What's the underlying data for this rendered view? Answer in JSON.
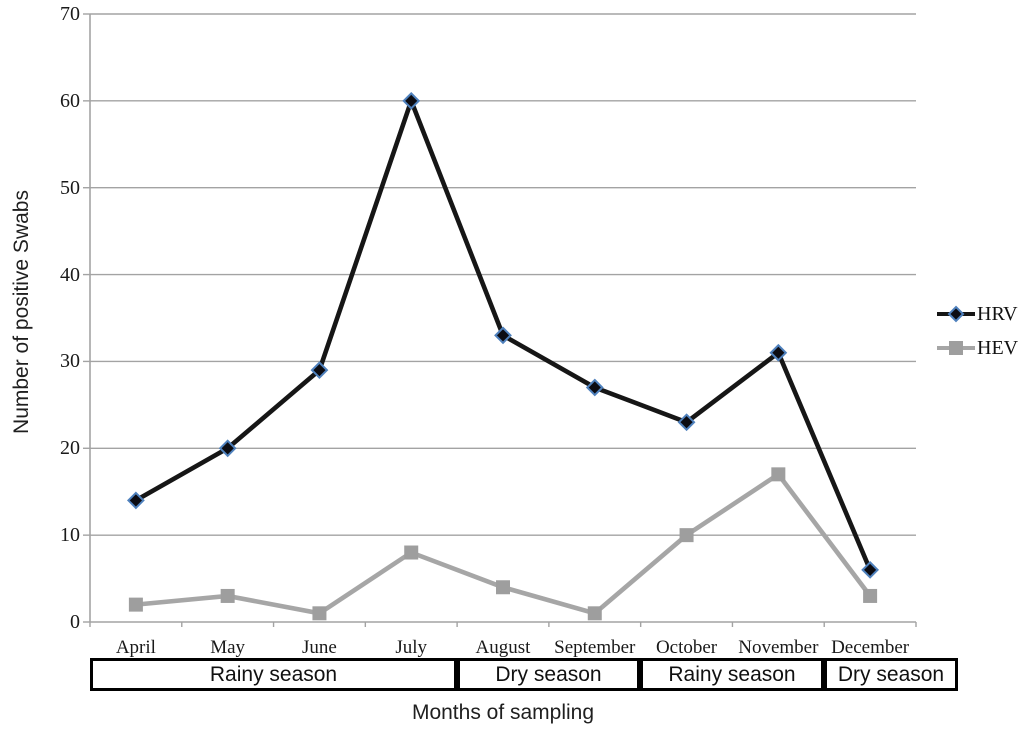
{
  "chart_data": {
    "type": "line",
    "ylabel": "Number of positive Swabs",
    "xlabel": "Months of sampling",
    "ylim": [
      0,
      70
    ],
    "yticks": [
      0,
      10,
      20,
      30,
      40,
      50,
      60,
      70
    ],
    "grid": "horizontal",
    "grid_color": "#a3a3a3",
    "axis_color": "#a3a3a3",
    "legend_position": "right-outside",
    "categories": [
      "April",
      "May",
      "June",
      "July",
      "August",
      "September",
      "October",
      "November",
      "December"
    ],
    "series": [
      {
        "name": "HEV",
        "values": [
          2,
          3,
          1,
          8,
          4,
          1,
          10,
          17,
          3
        ],
        "color": "#a6a6a6",
        "marker": "square",
        "marker_fill": "#9e9e9e",
        "marker_edge": "#9e9e9e"
      },
      {
        "name": "HRV",
        "values": [
          14,
          20,
          29,
          60,
          33,
          27,
          23,
          31,
          6
        ],
        "color": "#161616",
        "marker": "diamond",
        "marker_fill": "#0c0c12",
        "marker_edge": "#4f81bd"
      }
    ],
    "legend_order": [
      "HRV",
      "HEV"
    ],
    "season_bands": [
      {
        "label": "Rainy season",
        "months": [
          "April",
          "May",
          "June",
          "July"
        ]
      },
      {
        "label": "Dry season",
        "months": [
          "August",
          "September"
        ]
      },
      {
        "label": "Rainy season",
        "months": [
          "October",
          "November"
        ]
      },
      {
        "label": "Dry season",
        "months": [
          "December"
        ]
      }
    ]
  }
}
